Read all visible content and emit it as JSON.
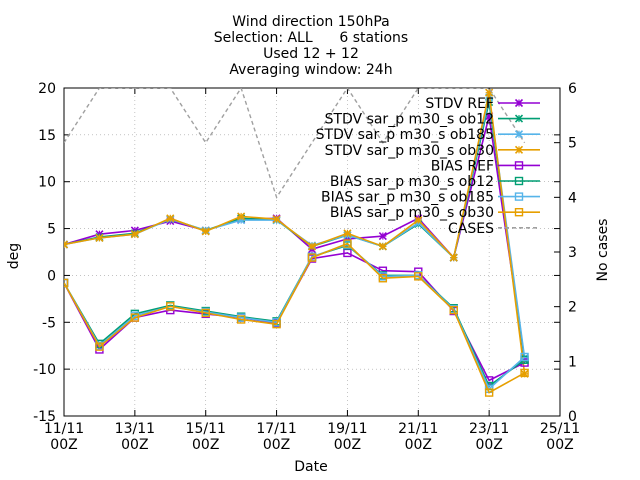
{
  "chart_data": {
    "type": "line",
    "title_lines": [
      "Wind direction 150hPa",
      "Selection: ALL      6 stations",
      "Used 12 + 12",
      "Averaging window: 24h"
    ],
    "xlabel": "Date",
    "ylabel": "deg",
    "y2label": "No cases",
    "xlim": [
      0,
      14
    ],
    "ylim": [
      -15,
      20
    ],
    "y2lim": [
      0,
      6
    ],
    "x_ticks": [
      {
        "x": 0,
        "line1": "11/11",
        "line2": "00Z"
      },
      {
        "x": 2,
        "line1": "13/11",
        "line2": "00Z"
      },
      {
        "x": 4,
        "line1": "15/11",
        "line2": "00Z"
      },
      {
        "x": 6,
        "line1": "17/11",
        "line2": "00Z"
      },
      {
        "x": 8,
        "line1": "19/11",
        "line2": "00Z"
      },
      {
        "x": 10,
        "line1": "21/11",
        "line2": "00Z"
      },
      {
        "x": 12,
        "line1": "23/11",
        "line2": "00Z"
      },
      {
        "x": 14,
        "line1": "25/11",
        "line2": "00Z"
      }
    ],
    "y_ticks": [
      -15,
      -10,
      -5,
      0,
      5,
      10,
      15,
      20
    ],
    "y2_ticks": [
      0,
      1,
      2,
      3,
      4,
      5,
      6
    ],
    "grid": true,
    "legend_position": "top-right",
    "series": [
      {
        "name": "STDV REF",
        "color": "#9400d3",
        "marker": "x",
        "axis": "y",
        "x": [
          0,
          1,
          2,
          3,
          4,
          5,
          6,
          7,
          8,
          9,
          10,
          11,
          12,
          13
        ],
        "values": [
          3.3,
          4.4,
          4.8,
          5.8,
          4.8,
          6.0,
          6.1,
          2.8,
          3.9,
          4.2,
          6.1,
          1.9,
          17.0,
          -9.0
        ]
      },
      {
        "name": "STDV sar_p m30_s ob12",
        "color": "#009e73",
        "marker": "x",
        "axis": "y",
        "x": [
          0,
          1,
          2,
          3,
          4,
          5,
          6,
          7,
          8,
          9,
          10,
          11,
          12,
          13
        ],
        "values": [
          3.3,
          4.1,
          4.5,
          6.0,
          4.8,
          6.1,
          5.9,
          3.1,
          4.3,
          3.1,
          5.5,
          1.9,
          18.5,
          -9.0
        ]
      },
      {
        "name": "STDV sar_p m30_s ob185",
        "color": "#56b4e9",
        "marker": "x",
        "axis": "y",
        "x": [
          0,
          1,
          2,
          3,
          4,
          5,
          6,
          7,
          8,
          9,
          10,
          11,
          12,
          13
        ],
        "values": [
          3.3,
          4.0,
          4.4,
          6.0,
          4.8,
          5.9,
          5.9,
          3.2,
          4.3,
          3.1,
          5.6,
          1.9,
          19.0,
          -8.8
        ]
      },
      {
        "name": "STDV sar_p m30_s ob30",
        "color": "#e69f00",
        "marker": "x",
        "axis": "y",
        "x": [
          0,
          1,
          2,
          3,
          4,
          5,
          6,
          7,
          8,
          9,
          10,
          11,
          12,
          13
        ],
        "values": [
          3.3,
          4.0,
          4.4,
          6.1,
          4.7,
          6.3,
          6.0,
          3.1,
          4.5,
          3.1,
          5.9,
          1.9,
          19.5,
          -10.5
        ]
      },
      {
        "name": "BIAS REF",
        "color": "#9400d3",
        "marker": "square",
        "axis": "y",
        "x": [
          0,
          1,
          2,
          3,
          4,
          5,
          6,
          7,
          8,
          9,
          10,
          11,
          12,
          13
        ],
        "values": [
          -0.8,
          -7.9,
          -4.5,
          -3.7,
          -4.1,
          -4.5,
          -5.1,
          1.8,
          2.4,
          0.5,
          0.4,
          -3.8,
          -11.2,
          -9.3
        ]
      },
      {
        "name": "BIAS sar_p m30_s ob12",
        "color": "#009e73",
        "marker": "square",
        "axis": "y",
        "x": [
          0,
          1,
          2,
          3,
          4,
          5,
          6,
          7,
          8,
          9,
          10,
          11,
          12,
          13
        ],
        "values": [
          -0.8,
          -7.3,
          -4.1,
          -3.2,
          -3.8,
          -4.4,
          -4.9,
          2.0,
          3.2,
          0.0,
          0.0,
          -3.5,
          -11.8,
          -9.0
        ]
      },
      {
        "name": "BIAS sar_p m30_s ob185",
        "color": "#56b4e9",
        "marker": "square",
        "axis": "y",
        "x": [
          0,
          1,
          2,
          3,
          4,
          5,
          6,
          7,
          8,
          9,
          10,
          11,
          12,
          13
        ],
        "values": [
          -0.8,
          -7.5,
          -4.3,
          -3.3,
          -3.9,
          -4.5,
          -5.0,
          2.0,
          3.3,
          -0.1,
          0.0,
          -3.6,
          -12.1,
          -8.7
        ]
      },
      {
        "name": "BIAS sar_p m30_s ob30",
        "color": "#e69f00",
        "marker": "square",
        "axis": "y",
        "x": [
          0,
          1,
          2,
          3,
          4,
          5,
          6,
          7,
          8,
          9,
          10,
          11,
          12,
          13
        ],
        "values": [
          -0.8,
          -7.6,
          -4.5,
          -3.3,
          -4.0,
          -4.7,
          -5.2,
          1.9,
          3.4,
          -0.3,
          -0.1,
          -3.7,
          -12.5,
          -10.4
        ]
      },
      {
        "name": "CASES",
        "color": "#a0a0a0",
        "marker": "none",
        "dashed": true,
        "axis": "y2",
        "x": [
          0,
          1,
          2,
          3,
          4,
          5,
          6,
          7,
          8,
          9,
          10,
          11,
          12,
          13
        ],
        "values": [
          5,
          6,
          6,
          6,
          5,
          6,
          4,
          5,
          6,
          5,
          6,
          6,
          6,
          5
        ]
      }
    ]
  }
}
